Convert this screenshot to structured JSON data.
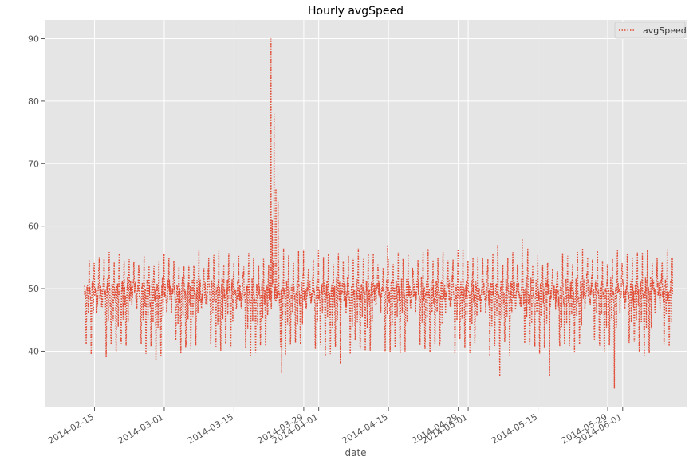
{
  "chart_data": {
    "type": "line",
    "title": "Hourly avgSpeed",
    "xlabel": "date",
    "ylabel": "",
    "x_range": [
      "2014-02-05",
      "2014-06-14"
    ],
    "ylim": [
      31,
      93
    ],
    "y_ticks": [
      40,
      50,
      60,
      70,
      80,
      90
    ],
    "x_ticks": [
      "2014-02-15",
      "2014-03-01",
      "2014-03-15",
      "2014-03-29",
      "2014-04-01",
      "2014-04-15",
      "2014-04-29",
      "2014-05-01",
      "2014-05-15",
      "2014-05-29",
      "2014-06-01"
    ],
    "grid": true,
    "legend": {
      "position": "top-right",
      "entries": [
        "avgSpeed"
      ]
    },
    "series": [
      {
        "name": "avgSpeed",
        "color": "#E24A33",
        "line_style": "dotted",
        "sampling": "hourly",
        "x_start": "2014-02-13",
        "x_end": "2014-06-11",
        "daily_pattern": [
          50,
          49.5,
          49,
          48.5,
          48.5,
          49,
          46,
          42,
          40.5,
          42,
          46,
          48.5,
          49.5,
          50,
          50.5,
          50.5,
          50,
          48,
          45,
          47,
          50,
          51.5,
          53.5,
          55
        ],
        "weekend_pattern": [
          50,
          50,
          49.5,
          49.5,
          49.5,
          50,
          50,
          49.5,
          49,
          48.5,
          48,
          47.5,
          47.5,
          48,
          48.5,
          49,
          49.5,
          50,
          50.5,
          51,
          52,
          53,
          53.5,
          54
        ],
        "notable_values": [
          {
            "x": "2014-03-22T10:00",
            "y": 90
          },
          {
            "x": "2014-03-22T16:00",
            "y": 61
          },
          {
            "x": "2014-03-23T01:00",
            "y": 78
          },
          {
            "x": "2014-03-23T10:00",
            "y": 66
          },
          {
            "x": "2014-03-23T20:00",
            "y": 64
          },
          {
            "x": "2014-03-24T14:00",
            "y": 36.5
          },
          {
            "x": "2014-02-27T08:00",
            "y": 38.5
          },
          {
            "x": "2014-02-17T08:00",
            "y": 39
          },
          {
            "x": "2014-04-05T08:00",
            "y": 38
          },
          {
            "x": "2014-05-07T08:00",
            "y": 36
          },
          {
            "x": "2014-05-17T08:00",
            "y": 36
          },
          {
            "x": "2014-05-30T08:00",
            "y": 34
          },
          {
            "x": "2014-05-11T20:00",
            "y": 58
          },
          {
            "x": "2014-04-14T20:00",
            "y": 57
          },
          {
            "x": "2014-05-06T22:00",
            "y": 57
          },
          {
            "x": "2014-06-01T22:00",
            "y": 55.5
          }
        ]
      }
    ]
  }
}
